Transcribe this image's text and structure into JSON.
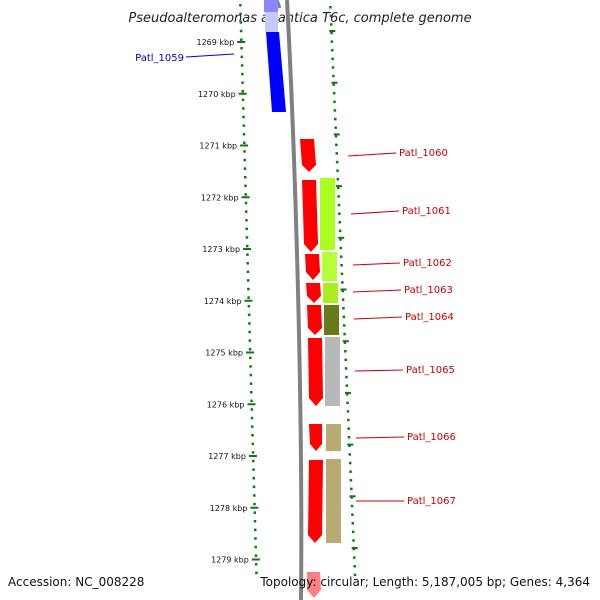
{
  "title": "Pseudoalteromonas atlantica T6c, complete genome",
  "footer": {
    "accession": "Accession: NC_008228",
    "topology": "Topology: circular; Length: 5,187,005 bp; Genes: 4,364"
  },
  "ruler": {
    "tick_labels": [
      "1269 kbp",
      "1270 kbp",
      "1271 kbp",
      "1272 kbp",
      "1273 kbp",
      "1274 kbp",
      "1275 kbp",
      "1276 kbp",
      "1277 kbp",
      "1278 kbp",
      "1279 kbp"
    ]
  },
  "gene_labels": [
    "Patl_1059",
    "Patl_1060",
    "Patl_1061",
    "Patl_1062",
    "Patl_1063",
    "Patl_1064",
    "Patl_1065",
    "Patl_1066",
    "Patl_1067"
  ],
  "colors": {
    "blue": "#0000ff",
    "red": "#ff0000",
    "lime": "#aaff22",
    "olive": "#667a1a",
    "grey": "#b8b8b8",
    "khaki": "#b8aa70",
    "tick_green": "#117711",
    "backbone": "#808080",
    "label_red": "#cc0000",
    "label_blue": "#0000cc"
  }
}
